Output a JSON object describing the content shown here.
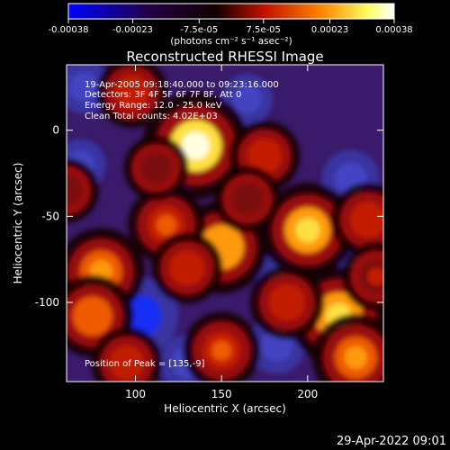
{
  "colorbar": {
    "tick_labels": [
      "-0.00038",
      "-0.00023",
      "-7.5e-05",
      "7.5e-05",
      "0.00023",
      "0.00038"
    ],
    "tick_values": [
      -0.00038,
      -0.00023,
      -7.5e-05,
      7.5e-05,
      0.00023,
      0.00038
    ],
    "range": [
      -0.00038,
      0.00038
    ],
    "unit_label": "(photons cm⁻² s⁻¹ asec⁻²)",
    "colormap": [
      "#0000ff",
      "#000000",
      "#c01000",
      "#ff8800",
      "#ffff60",
      "#ffffff"
    ]
  },
  "chart_data": {
    "type": "heatmap",
    "title": "Reconstructed RHESSI Image",
    "xlabel": "Heliocentric X (arcsec)",
    "ylabel": "Heliocentric Y (arcsec)",
    "xlim": [
      60,
      244
    ],
    "ylim": [
      -146,
      38
    ],
    "xticks": [
      100,
      150,
      200
    ],
    "yticks": [
      0,
      -50,
      -100
    ],
    "annotations": {
      "time": "19-Apr-2005 09:18:40.000 to 09:23:16.000",
      "detectors": "Detectors: 3F 4F 5F 6F 7F 8F, Att 0",
      "energy": "Energy Range: 12.0 - 25.0 keV",
      "clean": "Clean    Total counts: 4.02E+03",
      "peak": "Position of Peak = [135,-9]"
    },
    "peak_position": [
      135,
      -9
    ],
    "total_counts": 4020,
    "hotspots": [
      {
        "x": 135,
        "y": -9,
        "level": 1.0
      },
      {
        "x": 200,
        "y": -58,
        "level": 0.82
      },
      {
        "x": 150,
        "y": -68,
        "level": 0.78
      },
      {
        "x": 218,
        "y": -108,
        "level": 0.88
      },
      {
        "x": 228,
        "y": -132,
        "level": 0.7
      },
      {
        "x": 80,
        "y": -82,
        "level": 0.7
      },
      {
        "x": 75,
        "y": -108,
        "level": 0.62
      },
      {
        "x": 118,
        "y": -55,
        "level": 0.55
      },
      {
        "x": 175,
        "y": -15,
        "level": 0.45
      },
      {
        "x": 98,
        "y": 22,
        "level": 0.45
      },
      {
        "x": 150,
        "y": -128,
        "level": 0.55
      },
      {
        "x": 188,
        "y": -100,
        "level": 0.5
      },
      {
        "x": 130,
        "y": -80,
        "level": 0.45
      },
      {
        "x": 235,
        "y": -52,
        "level": 0.5
      },
      {
        "x": 112,
        "y": -22,
        "level": 0.35
      },
      {
        "x": 165,
        "y": -40,
        "level": 0.38
      },
      {
        "x": 95,
        "y": -135,
        "level": 0.45
      },
      {
        "x": 240,
        "y": -85,
        "level": 0.42
      },
      {
        "x": 60,
        "y": -35,
        "level": 0.35
      }
    ],
    "coldspots": [
      {
        "x": 103,
        "y": -108,
        "level": 1.0
      },
      {
        "x": 225,
        "y": -28,
        "level": 0.55
      },
      {
        "x": 232,
        "y": -80,
        "level": 0.5
      },
      {
        "x": 70,
        "y": 25,
        "level": 0.45
      },
      {
        "x": 165,
        "y": 18,
        "level": 0.4
      },
      {
        "x": 130,
        "y": -135,
        "level": 0.5
      },
      {
        "x": 182,
        "y": -125,
        "level": 0.55
      },
      {
        "x": 68,
        "y": -20,
        "level": 0.4
      },
      {
        "x": 185,
        "y": -85,
        "level": 0.4
      },
      {
        "x": 120,
        "y": -30,
        "level": 0.35
      }
    ]
  },
  "footer_date": "29-Apr-2022 09:01"
}
